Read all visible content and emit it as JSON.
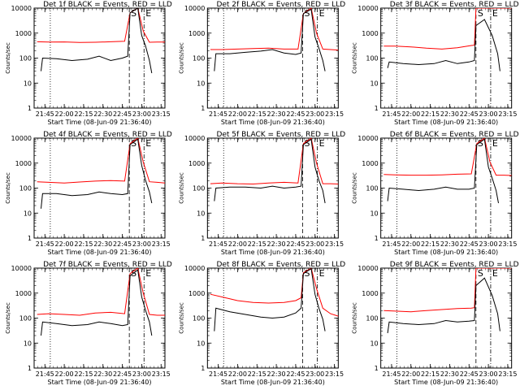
{
  "figure": {
    "xlabel": "Start Time (08-Jun-09 21:36:40)",
    "ylabel": "Counts/sec",
    "x_tick_labels": [
      "21:45",
      "22:00",
      "22:15",
      "22:30",
      "22:45",
      "23:00",
      "23:15"
    ],
    "y_tick_labels": [
      "1",
      "10",
      "100",
      "1000",
      "10000"
    ],
    "colors": {
      "events": "#000000",
      "lld": "#ff0000"
    }
  },
  "chart_data": [
    {
      "type": "line",
      "title": "Det 1f BLACK = Events, RED = LLD",
      "event_markers": [
        "S",
        "E"
      ],
      "xlim": [
        21.6111,
        23.3
      ],
      "ylim": [
        1,
        10000
      ],
      "yscale": "log",
      "x_ticks": [
        21.75,
        22.0,
        22.25,
        22.5,
        22.75,
        23.0,
        23.25
      ],
      "y_ticks": [
        1,
        10,
        100,
        1000,
        10000
      ],
      "vlines": [
        {
          "x": 21.82,
          "style": "dotted"
        },
        {
          "x": 22.84,
          "style": "dashed"
        },
        {
          "x": 23.03,
          "style": "dashdot"
        }
      ],
      "series": [
        {
          "color": "#ff0000",
          "x": [
            21.65,
            21.8,
            22.0,
            22.2,
            22.4,
            22.6,
            22.78,
            22.85,
            22.95,
            23.02,
            23.1,
            23.2,
            23.3
          ],
          "y": [
            450,
            440,
            445,
            420,
            430,
            450,
            470,
            6500,
            11000,
            1200,
            430,
            440,
            440
          ]
        },
        {
          "color": "#000000",
          "x": [
            21.7,
            21.72,
            21.9,
            22.1,
            22.3,
            22.45,
            22.6,
            22.75,
            22.82,
            22.85,
            22.95,
            23.0,
            23.05,
            23.1,
            23.13
          ],
          "y": [
            30,
            100,
            95,
            80,
            90,
            120,
            80,
            100,
            120,
            6500,
            10000,
            800,
            300,
            80,
            25
          ]
        }
      ]
    },
    {
      "type": "line",
      "title": "Det 2f BLACK = Events, RED = LLD",
      "event_markers": [
        "S",
        "E"
      ],
      "xlim": [
        21.6111,
        23.3
      ],
      "ylim": [
        1,
        10000
      ],
      "yscale": "log",
      "x_ticks": [
        21.75,
        22.0,
        22.25,
        22.5,
        22.75,
        23.0,
        23.25
      ],
      "y_ticks": [
        1,
        10,
        100,
        1000,
        10000
      ],
      "vlines": [
        {
          "x": 21.82,
          "style": "dotted"
        },
        {
          "x": 22.84,
          "style": "dashed"
        },
        {
          "x": 23.03,
          "style": "dashdot"
        }
      ],
      "series": [
        {
          "color": "#ff0000",
          "x": [
            21.65,
            21.8,
            22.0,
            22.2,
            22.4,
            22.6,
            22.78,
            22.85,
            22.95,
            23.02,
            23.1,
            23.2,
            23.3
          ],
          "y": [
            220,
            220,
            230,
            240,
            250,
            230,
            230,
            6000,
            10000,
            1000,
            230,
            220,
            210
          ]
        },
        {
          "color": "#000000",
          "x": [
            21.7,
            21.72,
            21.9,
            22.1,
            22.3,
            22.45,
            22.6,
            22.75,
            22.82,
            22.85,
            22.95,
            23.0,
            23.05,
            23.1,
            23.13
          ],
          "y": [
            30,
            150,
            150,
            170,
            190,
            220,
            160,
            140,
            160,
            6000,
            9000,
            700,
            250,
            80,
            30
          ]
        }
      ]
    },
    {
      "type": "line",
      "title": "Det 3f BLACK = Events, RED = LLD",
      "event_markers": [
        "S",
        "E"
      ],
      "xlim": [
        21.6111,
        23.3
      ],
      "ylim": [
        1,
        10000
      ],
      "yscale": "log",
      "x_ticks": [
        21.75,
        22.0,
        22.25,
        22.5,
        22.75,
        23.0,
        23.25
      ],
      "y_ticks": [
        1,
        10,
        100,
        1000,
        10000
      ],
      "vlines": [
        {
          "x": 21.82,
          "style": "dotted"
        },
        {
          "x": 22.84,
          "style": "dashed"
        },
        {
          "x": 23.03,
          "style": "dashdot"
        }
      ],
      "series": [
        {
          "color": "#ff0000",
          "x": [
            21.65,
            21.8,
            22.0,
            22.2,
            22.4,
            22.6,
            22.78,
            22.82,
            22.84,
            22.9,
            23.0,
            23.05,
            23.15,
            23.3
          ],
          "y": [
            300,
            300,
            280,
            250,
            230,
            260,
            320,
            330,
            10000,
            10000,
            10000,
            10000,
            10000,
            10000
          ]
        },
        {
          "color": "#000000",
          "x": [
            21.7,
            21.72,
            21.9,
            22.1,
            22.3,
            22.45,
            22.6,
            22.75,
            22.82,
            22.84,
            22.95,
            23.05,
            23.12,
            23.15
          ],
          "y": [
            40,
            70,
            60,
            55,
            60,
            80,
            60,
            70,
            80,
            2000,
            3500,
            800,
            150,
            30
          ]
        }
      ]
    },
    {
      "type": "line",
      "title": "Det 4f BLACK = Events, RED = LLD",
      "event_markers": [
        "S",
        "E"
      ],
      "xlim": [
        21.6111,
        23.3
      ],
      "ylim": [
        1,
        10000
      ],
      "yscale": "log",
      "x_ticks": [
        21.75,
        22.0,
        22.25,
        22.5,
        22.75,
        23.0,
        23.25
      ],
      "y_ticks": [
        1,
        10,
        100,
        1000,
        10000
      ],
      "vlines": [
        {
          "x": 21.82,
          "style": "dotted"
        },
        {
          "x": 22.84,
          "style": "dashed"
        },
        {
          "x": 23.03,
          "style": "dashdot"
        }
      ],
      "series": [
        {
          "color": "#ff0000",
          "x": [
            21.65,
            21.8,
            22.0,
            22.2,
            22.4,
            22.6,
            22.78,
            22.85,
            22.95,
            23.02,
            23.1,
            23.2,
            23.3
          ],
          "y": [
            180,
            170,
            160,
            175,
            190,
            200,
            190,
            6000,
            10000,
            1100,
            180,
            170,
            160
          ]
        },
        {
          "color": "#000000",
          "x": [
            21.7,
            21.72,
            21.9,
            22.1,
            22.3,
            22.45,
            22.6,
            22.75,
            22.82,
            22.85,
            22.95,
            23.0,
            23.05,
            23.1,
            23.13
          ],
          "y": [
            15,
            60,
            60,
            50,
            55,
            70,
            60,
            55,
            60,
            5500,
            9000,
            800,
            200,
            70,
            25
          ]
        }
      ]
    },
    {
      "type": "line",
      "title": "Det 5f BLACK = Events, RED = LLD",
      "event_markers": [
        "S",
        "E"
      ],
      "xlim": [
        21.6111,
        23.3
      ],
      "ylim": [
        1,
        10000
      ],
      "yscale": "log",
      "x_ticks": [
        21.75,
        22.0,
        22.25,
        22.5,
        22.75,
        23.0,
        23.25
      ],
      "y_ticks": [
        1,
        10,
        100,
        1000,
        10000
      ],
      "vlines": [
        {
          "x": 21.82,
          "style": "dotted"
        },
        {
          "x": 22.84,
          "style": "dashed"
        },
        {
          "x": 23.03,
          "style": "dashdot"
        }
      ],
      "series": [
        {
          "color": "#ff0000",
          "x": [
            21.65,
            21.8,
            22.0,
            22.2,
            22.4,
            22.6,
            22.78,
            22.85,
            22.95,
            23.02,
            23.1,
            23.2,
            23.3
          ],
          "y": [
            150,
            160,
            150,
            145,
            160,
            170,
            160,
            6000,
            10000,
            1000,
            150,
            150,
            145
          ]
        },
        {
          "color": "#000000",
          "x": [
            21.7,
            21.72,
            21.9,
            22.1,
            22.3,
            22.45,
            22.6,
            22.75,
            22.82,
            22.85,
            22.95,
            23.0,
            23.05,
            23.1,
            23.13
          ],
          "y": [
            30,
            100,
            110,
            110,
            100,
            120,
            100,
            110,
            120,
            5500,
            9000,
            700,
            200,
            80,
            25
          ]
        }
      ]
    },
    {
      "type": "line",
      "title": "Det 6f BLACK = Events, RED = LLD",
      "event_markers": [
        "S",
        "E"
      ],
      "xlim": [
        21.6111,
        23.3
      ],
      "ylim": [
        1,
        10000
      ],
      "yscale": "log",
      "x_ticks": [
        21.75,
        22.0,
        22.25,
        22.5,
        22.75,
        23.0,
        23.25
      ],
      "y_ticks": [
        1,
        10,
        100,
        1000,
        10000
      ],
      "vlines": [
        {
          "x": 21.82,
          "style": "dotted"
        },
        {
          "x": 22.84,
          "style": "dashed"
        },
        {
          "x": 23.03,
          "style": "dashdot"
        }
      ],
      "series": [
        {
          "color": "#ff0000",
          "x": [
            21.65,
            21.8,
            22.0,
            22.2,
            22.4,
            22.6,
            22.78,
            22.85,
            22.95,
            23.02,
            23.1,
            23.2,
            23.3
          ],
          "y": [
            350,
            340,
            330,
            330,
            340,
            360,
            370,
            6000,
            10000,
            1100,
            330,
            330,
            320
          ]
        },
        {
          "color": "#000000",
          "x": [
            21.7,
            21.72,
            21.9,
            22.1,
            22.3,
            22.45,
            22.6,
            22.75,
            22.82,
            22.85,
            22.95,
            23.0,
            23.05,
            23.1,
            23.13
          ],
          "y": [
            30,
            100,
            90,
            80,
            90,
            110,
            90,
            90,
            100,
            5500,
            9000,
            700,
            250,
            80,
            25
          ]
        }
      ]
    },
    {
      "type": "line",
      "title": "Det 7f BLACK = Events, RED = LLD",
      "event_markers": [
        "S",
        "E"
      ],
      "xlim": [
        21.6111,
        23.3
      ],
      "ylim": [
        1,
        10000
      ],
      "yscale": "log",
      "x_ticks": [
        21.75,
        22.0,
        22.25,
        22.5,
        22.75,
        23.0,
        23.25
      ],
      "y_ticks": [
        1,
        10,
        100,
        1000,
        10000
      ],
      "vlines": [
        {
          "x": 21.82,
          "style": "dotted"
        },
        {
          "x": 22.84,
          "style": "dashed"
        },
        {
          "x": 23.03,
          "style": "dashdot"
        }
      ],
      "series": [
        {
          "color": "#ff0000",
          "x": [
            21.65,
            21.8,
            22.0,
            22.2,
            22.4,
            22.6,
            22.78,
            22.85,
            22.95,
            23.02,
            23.1,
            23.2,
            23.3
          ],
          "y": [
            140,
            150,
            140,
            130,
            160,
            170,
            150,
            6000,
            10000,
            1000,
            140,
            130,
            130
          ]
        },
        {
          "color": "#000000",
          "x": [
            21.7,
            21.72,
            21.9,
            22.1,
            22.3,
            22.45,
            22.6,
            22.75,
            22.82,
            22.85,
            22.95,
            23.0,
            23.05,
            23.1,
            23.13
          ],
          "y": [
            20,
            70,
            60,
            50,
            55,
            70,
            60,
            50,
            55,
            5000,
            8500,
            700,
            200,
            70,
            20
          ]
        }
      ]
    },
    {
      "type": "line",
      "title": "Det 8f BLACK = Events, RED = LLD",
      "event_markers": [
        "S",
        "E"
      ],
      "xlim": [
        21.6111,
        23.3
      ],
      "ylim": [
        1,
        10000
      ],
      "yscale": "log",
      "x_ticks": [
        21.75,
        22.0,
        22.25,
        22.5,
        22.75,
        23.0,
        23.25
      ],
      "y_ticks": [
        1,
        10,
        100,
        1000,
        10000
      ],
      "vlines": [
        {
          "x": 21.82,
          "style": "dotted"
        },
        {
          "x": 22.84,
          "style": "dashed"
        },
        {
          "x": 23.03,
          "style": "dashdot"
        }
      ],
      "series": [
        {
          "color": "#ff0000",
          "x": [
            21.65,
            21.8,
            22.0,
            22.2,
            22.4,
            22.6,
            22.75,
            22.82,
            22.85,
            22.95,
            23.02,
            23.1,
            23.2,
            23.3
          ],
          "y": [
            900,
            700,
            500,
            420,
            400,
            420,
            500,
            650,
            6500,
            10000,
            1500,
            250,
            150,
            120
          ]
        },
        {
          "color": "#000000",
          "x": [
            21.7,
            21.72,
            21.9,
            22.1,
            22.3,
            22.45,
            22.6,
            22.75,
            22.82,
            22.85,
            22.95,
            23.0,
            23.05,
            23.1,
            23.13
          ],
          "y": [
            30,
            250,
            180,
            140,
            110,
            100,
            110,
            160,
            250,
            6000,
            9500,
            900,
            250,
            90,
            30
          ]
        }
      ]
    },
    {
      "type": "line",
      "title": "Det 9f BLACK = Events, RED = LLD",
      "event_markers": [
        "S",
        "E"
      ],
      "xlim": [
        21.6111,
        23.3
      ],
      "ylim": [
        1,
        10000
      ],
      "yscale": "log",
      "x_ticks": [
        21.75,
        22.0,
        22.25,
        22.5,
        22.75,
        23.0,
        23.25
      ],
      "y_ticks": [
        1,
        10,
        100,
        1000,
        10000
      ],
      "vlines": [
        {
          "x": 21.82,
          "style": "dotted"
        },
        {
          "x": 22.84,
          "style": "dashed"
        },
        {
          "x": 23.03,
          "style": "dashdot"
        }
      ],
      "series": [
        {
          "color": "#ff0000",
          "x": [
            21.65,
            21.8,
            22.0,
            22.2,
            22.4,
            22.6,
            22.78,
            22.82,
            22.84,
            22.9,
            23.0,
            23.05,
            23.15,
            23.3
          ],
          "y": [
            200,
            190,
            180,
            200,
            220,
            240,
            250,
            260,
            10000,
            10000,
            10000,
            10000,
            10000,
            10000
          ]
        },
        {
          "color": "#000000",
          "x": [
            21.7,
            21.72,
            21.9,
            22.1,
            22.3,
            22.45,
            22.6,
            22.75,
            22.82,
            22.84,
            22.95,
            23.05,
            23.12,
            23.15
          ],
          "y": [
            25,
            70,
            60,
            55,
            60,
            80,
            70,
            75,
            80,
            2000,
            4000,
            800,
            150,
            30
          ]
        }
      ]
    }
  ]
}
